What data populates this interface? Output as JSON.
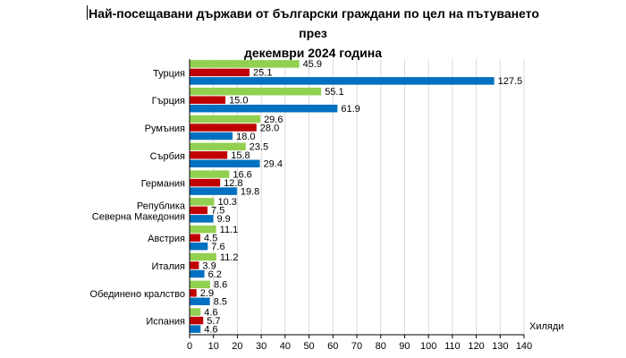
{
  "chart_data": {
    "type": "bar",
    "orientation": "horizontal",
    "title_line1": "Най-посещавани държави от български граждани по цел на пътуването през",
    "title_line2": "декември 2024 година",
    "unit": "Хиляди",
    "categories": [
      [
        "Турция"
      ],
      [
        "Гърция"
      ],
      [
        "Румъния"
      ],
      [
        "Сърбия"
      ],
      [
        "Германия"
      ],
      [
        "Република",
        "Северна Македония"
      ],
      [
        "Австрия"
      ],
      [
        "Италия"
      ],
      [
        "Обединено кралство"
      ],
      [
        "Испания"
      ]
    ],
    "series": [
      {
        "color": "#92d050",
        "values": [
          45.9,
          55.1,
          29.6,
          23.5,
          16.6,
          10.3,
          11.1,
          11.2,
          8.6,
          4.6
        ]
      },
      {
        "color": "#c00000",
        "values": [
          25.1,
          15.0,
          28.0,
          15.8,
          12.8,
          7.5,
          4.5,
          3.9,
          2.9,
          5.7
        ]
      },
      {
        "color": "#0070c0",
        "values": [
          127.5,
          61.9,
          18.0,
          29.4,
          19.8,
          9.9,
          7.6,
          6.2,
          8.5,
          4.6
        ]
      }
    ],
    "xlim": [
      0,
      140
    ],
    "xticks": [
      0,
      10,
      20,
      30,
      40,
      50,
      60,
      70,
      80,
      90,
      100,
      110,
      120,
      130,
      140
    ],
    "grid": true
  }
}
